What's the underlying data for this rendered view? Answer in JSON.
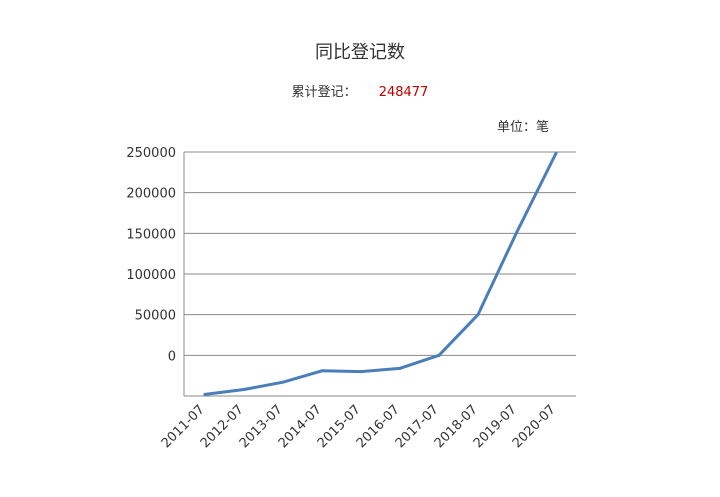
{
  "header": {
    "title": "同比登记数",
    "total_label": "累计登记：",
    "total_value": "248477",
    "unit_label": "单位：笔"
  },
  "chart_data": {
    "type": "line",
    "title": "同比登记数",
    "xlabel": "",
    "ylabel": "",
    "x": [
      "2011-07",
      "2012-07",
      "2013-07",
      "2014-07",
      "2015-07",
      "2016-07",
      "2017-07",
      "2018-07",
      "2019-07",
      "2020-07"
    ],
    "series": [
      {
        "values": [
          -48000,
          -42000,
          -33000,
          -19000,
          -20000,
          -16000,
          0,
          50000,
          152000,
          248477
        ]
      }
    ],
    "yticks": [
      0,
      50000,
      100000,
      150000,
      200000,
      250000
    ],
    "ylim": [
      -50000,
      250000
    ],
    "grid": true,
    "line_color": "#4a7ebb"
  }
}
